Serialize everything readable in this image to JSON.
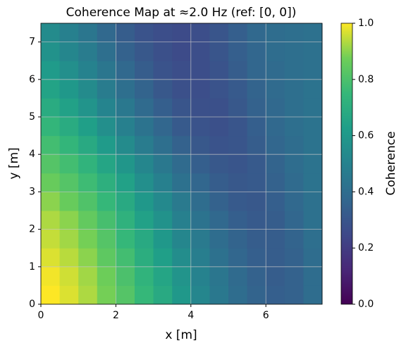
{
  "chart_data": {
    "type": "heatmap",
    "title": "Coherence Map at ≈2.0 Hz (ref: [0, 0])",
    "x_label": "x [m]",
    "y_label": "y [m]",
    "colorbar_label": "Coherence",
    "colormap": "viridis",
    "xlim": [
      0,
      7.5
    ],
    "ylim": [
      0,
      7.5
    ],
    "xticks": [
      0,
      2,
      4,
      6
    ],
    "yticks": [
      0,
      1,
      2,
      3,
      4,
      5,
      6,
      7
    ],
    "clim": [
      0,
      1
    ],
    "cticks": [
      {
        "value": 0,
        "label": "0.0"
      },
      {
        "value": 0.2,
        "label": "0.2"
      },
      {
        "value": 0.4,
        "label": "0.4"
      },
      {
        "value": 0.6,
        "label": "0.6"
      },
      {
        "value": 0.8,
        "label": "0.8"
      },
      {
        "value": 1,
        "label": "1.0"
      }
    ],
    "grid": true,
    "origin": "lower",
    "values": [
      [
        1.0,
        0.97,
        0.93,
        0.88,
        0.82,
        0.75,
        0.68,
        0.6,
        0.52,
        0.45,
        0.4,
        0.36,
        0.34,
        0.35,
        0.4
      ],
      [
        0.99,
        0.96,
        0.92,
        0.87,
        0.8,
        0.73,
        0.66,
        0.58,
        0.5,
        0.44,
        0.39,
        0.35,
        0.33,
        0.35,
        0.4
      ],
      [
        0.97,
        0.94,
        0.9,
        0.84,
        0.78,
        0.7,
        0.63,
        0.55,
        0.48,
        0.42,
        0.37,
        0.34,
        0.33,
        0.35,
        0.4
      ],
      [
        0.95,
        0.92,
        0.88,
        0.82,
        0.75,
        0.68,
        0.6,
        0.52,
        0.46,
        0.4,
        0.36,
        0.33,
        0.33,
        0.36,
        0.41
      ],
      [
        0.93,
        0.9,
        0.85,
        0.79,
        0.72,
        0.64,
        0.57,
        0.49,
        0.43,
        0.38,
        0.34,
        0.32,
        0.33,
        0.37,
        0.42
      ],
      [
        0.9,
        0.86,
        0.81,
        0.75,
        0.68,
        0.6,
        0.53,
        0.46,
        0.4,
        0.35,
        0.32,
        0.31,
        0.34,
        0.38,
        0.42
      ],
      [
        0.86,
        0.82,
        0.77,
        0.71,
        0.64,
        0.56,
        0.49,
        0.42,
        0.37,
        0.33,
        0.31,
        0.32,
        0.35,
        0.39,
        0.43
      ],
      [
        0.82,
        0.78,
        0.73,
        0.66,
        0.59,
        0.52,
        0.45,
        0.39,
        0.34,
        0.31,
        0.3,
        0.32,
        0.36,
        0.4,
        0.43
      ],
      [
        0.78,
        0.74,
        0.68,
        0.61,
        0.54,
        0.47,
        0.41,
        0.35,
        0.31,
        0.29,
        0.3,
        0.33,
        0.37,
        0.4,
        0.43
      ],
      [
        0.74,
        0.69,
        0.63,
        0.56,
        0.49,
        0.43,
        0.37,
        0.32,
        0.29,
        0.28,
        0.3,
        0.34,
        0.38,
        0.41,
        0.43
      ],
      [
        0.69,
        0.64,
        0.58,
        0.51,
        0.45,
        0.39,
        0.34,
        0.3,
        0.28,
        0.28,
        0.31,
        0.35,
        0.38,
        0.41,
        0.43
      ],
      [
        0.65,
        0.6,
        0.54,
        0.47,
        0.41,
        0.36,
        0.31,
        0.28,
        0.27,
        0.29,
        0.32,
        0.36,
        0.39,
        0.41,
        0.43
      ],
      [
        0.61,
        0.56,
        0.5,
        0.44,
        0.38,
        0.33,
        0.29,
        0.27,
        0.27,
        0.29,
        0.33,
        0.37,
        0.39,
        0.41,
        0.42
      ],
      [
        0.57,
        0.52,
        0.47,
        0.41,
        0.35,
        0.31,
        0.28,
        0.26,
        0.27,
        0.3,
        0.34,
        0.37,
        0.4,
        0.41,
        0.42
      ],
      [
        0.54,
        0.49,
        0.44,
        0.38,
        0.33,
        0.29,
        0.27,
        0.26,
        0.27,
        0.3,
        0.34,
        0.38,
        0.4,
        0.41,
        0.42
      ]
    ]
  }
}
